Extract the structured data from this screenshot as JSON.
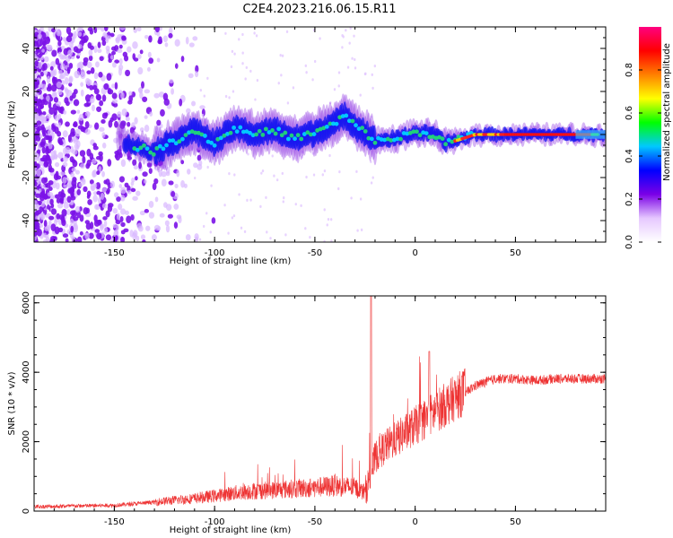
{
  "title": "C2E4.2023.216.06.15.R11",
  "chart_data": [
    {
      "type": "heatmap",
      "title": "C2E4.2023.216.06.15.R11",
      "xlabel": "Height of straight line (km)",
      "ylabel": "Frequency (Hz)",
      "xlim": [
        -190,
        95
      ],
      "ylim": [
        -50,
        50
      ],
      "xticks": [
        -150,
        -100,
        -50,
        0,
        50
      ],
      "yticks": [
        -40,
        -20,
        0,
        20,
        40
      ],
      "ridge": {
        "description": "Normalized spectral amplitude concentrated near 0 Hz; noisy and scattered for heights below about -130 km, broad band between -130 and -20 km, narrowing toward 0 Hz above 0 km",
        "points": [
          {
            "x": -145,
            "f": -4
          },
          {
            "x": -130,
            "f": -8
          },
          {
            "x": -120,
            "f": -3
          },
          {
            "x": -110,
            "f": 2
          },
          {
            "x": -100,
            "f": -4
          },
          {
            "x": -90,
            "f": 3
          },
          {
            "x": -80,
            "f": 0
          },
          {
            "x": -70,
            "f": 2
          },
          {
            "x": -60,
            "f": -2
          },
          {
            "x": -50,
            "f": 1
          },
          {
            "x": -40,
            "f": 5
          },
          {
            "x": -35,
            "f": 9
          },
          {
            "x": -30,
            "f": 4
          },
          {
            "x": -25,
            "f": 1
          },
          {
            "x": -20,
            "f": -3
          },
          {
            "x": -10,
            "f": -2
          },
          {
            "x": 0,
            "f": 1
          },
          {
            "x": 10,
            "f": 0
          },
          {
            "x": 15,
            "f": -4
          },
          {
            "x": 20,
            "f": -3
          },
          {
            "x": 30,
            "f": 0
          },
          {
            "x": 50,
            "f": 0
          },
          {
            "x": 70,
            "f": 0
          },
          {
            "x": 95,
            "f": 0
          }
        ]
      },
      "colorbar": {
        "label": "Normalized spectral amplitude",
        "range": [
          0,
          1
        ],
        "ticks": [
          "0.0",
          "0.2",
          "0.4",
          "0.6",
          "0.8"
        ],
        "tick_values": [
          0.0,
          0.2,
          0.4,
          0.6,
          0.8
        ],
        "colors": [
          "#ffffff",
          "#e6c8ff",
          "#7a00e6",
          "#0000ff",
          "#00c8ff",
          "#00ff00",
          "#ffff00",
          "#ff8000",
          "#ff0000",
          "#ff0080"
        ]
      }
    },
    {
      "type": "line",
      "xlabel": "Height of straight line (km)",
      "ylabel": "SNR (10 * v/v)",
      "xlim": [
        -190,
        95
      ],
      "ylim": [
        0,
        6200
      ],
      "xticks": [
        -150,
        -100,
        -50,
        0,
        50
      ],
      "yticks": [
        0,
        2000,
        4000,
        6000
      ],
      "color": "#ee3333",
      "series": [
        {
          "name": "SNR",
          "x": [
            -190,
            -170,
            -150,
            -130,
            -120,
            -110,
            -100,
            -90,
            -80,
            -70,
            -60,
            -50,
            -40,
            -30,
            -25,
            -22,
            -20,
            -15,
            -10,
            -5,
            0,
            5,
            10,
            15,
            20,
            25,
            30,
            40,
            50,
            60,
            70,
            80,
            95
          ],
          "y": [
            120,
            140,
            160,
            250,
            300,
            350,
            420,
            500,
            560,
            580,
            620,
            650,
            700,
            650,
            500,
            1000,
            1500,
            1800,
            2000,
            2200,
            2400,
            2600,
            2800,
            3000,
            3200,
            3400,
            3600,
            3800,
            3800,
            3750,
            3800,
            3800,
            3800
          ]
        }
      ],
      "annotations": [
        {
          "x": -22,
          "y": 6200,
          "note": "spike"
        },
        {
          "x": 7,
          "y": 4600,
          "note": "spike"
        }
      ]
    }
  ]
}
